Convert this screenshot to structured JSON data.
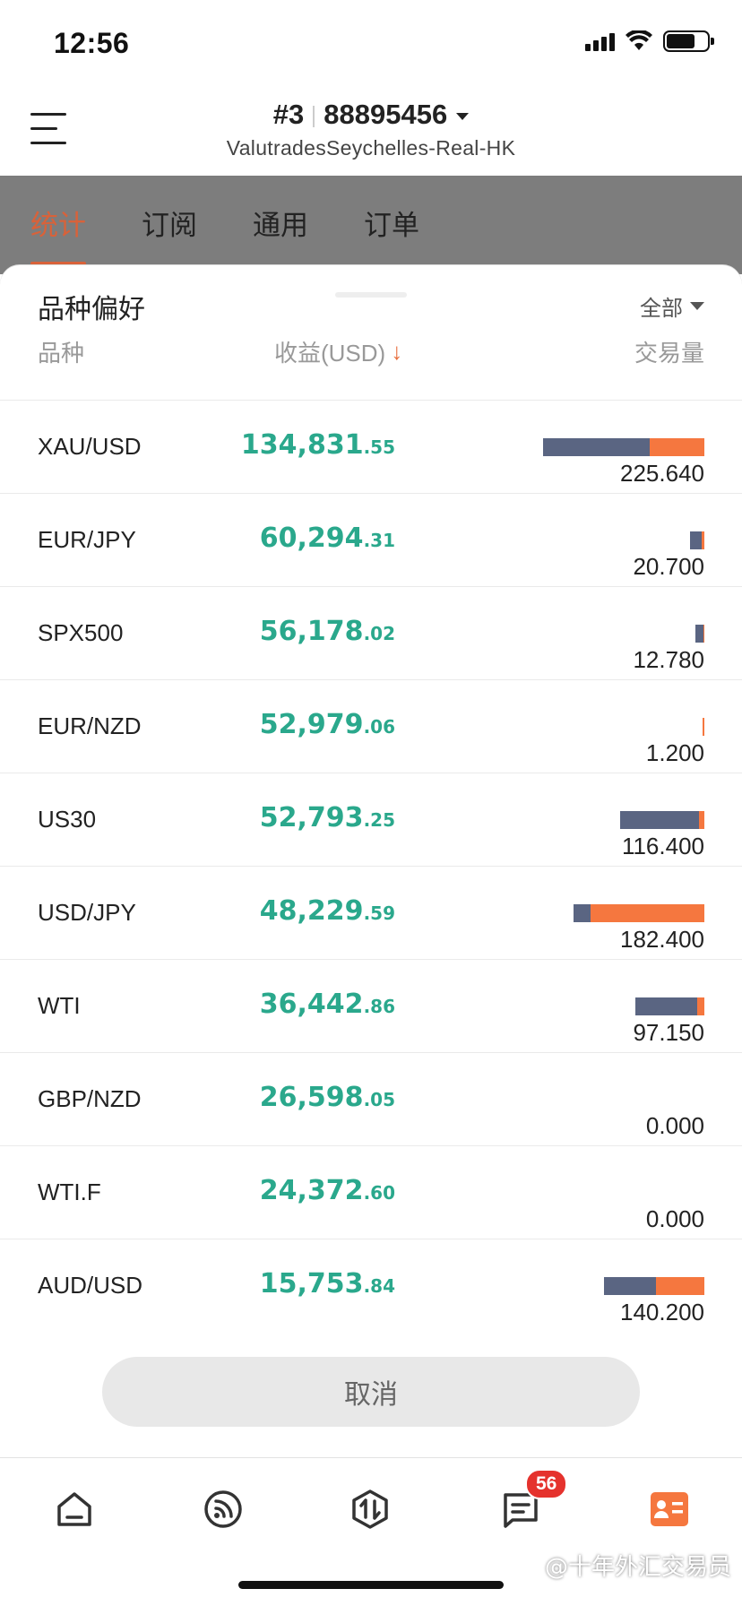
{
  "status": {
    "time": "12:56"
  },
  "header": {
    "account_number_prefix": "#3",
    "account_number": "88895456",
    "server": "ValutradesSeychelles-Real-HK"
  },
  "tabs": [
    {
      "label": "统计",
      "active": true
    },
    {
      "label": "订阅",
      "active": false
    },
    {
      "label": "通用",
      "active": false
    },
    {
      "label": "订单",
      "active": false
    }
  ],
  "sheet": {
    "title": "品种偏好",
    "filter_label": "全部",
    "columns": {
      "symbol": "品种",
      "profit": "收益(USD)",
      "sort_arrow": "↓",
      "volume": "交易量"
    },
    "rows": [
      {
        "symbol": "XAU/USD",
        "profit_int": "134,831",
        "profit_dec": ".55",
        "volume": "225.640",
        "buy_share": 0.66,
        "bar_fraction": 1.0
      },
      {
        "symbol": "EUR/JPY",
        "profit_int": "60,294",
        "profit_dec": ".31",
        "volume": "20.700",
        "buy_share": 0.8,
        "bar_fraction": 0.09
      },
      {
        "symbol": "SPX500",
        "profit_int": "56,178",
        "profit_dec": ".02",
        "volume": "12.780",
        "buy_share": 0.9,
        "bar_fraction": 0.057
      },
      {
        "symbol": "EUR/NZD",
        "profit_int": "52,979",
        "profit_dec": ".06",
        "volume": "1.200",
        "buy_share": 0.0,
        "bar_fraction": 0.012
      },
      {
        "symbol": "US30",
        "profit_int": "52,793",
        "profit_dec": ".25",
        "volume": "116.400",
        "buy_share": 0.94,
        "bar_fraction": 0.52
      },
      {
        "symbol": "USD/JPY",
        "profit_int": "48,229",
        "profit_dec": ".59",
        "volume": "182.400",
        "buy_share": 0.13,
        "bar_fraction": 0.81
      },
      {
        "symbol": "WTI",
        "profit_int": "36,442",
        "profit_dec": ".86",
        "volume": "97.150",
        "buy_share": 0.89,
        "bar_fraction": 0.43
      },
      {
        "symbol": "GBP/NZD",
        "profit_int": "26,598",
        "profit_dec": ".05",
        "volume": "0.000",
        "buy_share": 0.0,
        "bar_fraction": 0.0
      },
      {
        "symbol": "WTI.F",
        "profit_int": "24,372",
        "profit_dec": ".60",
        "volume": "0.000",
        "buy_share": 0.0,
        "bar_fraction": 0.0
      },
      {
        "symbol": "AUD/USD",
        "profit_int": "15,753",
        "profit_dec": ".84",
        "volume": "140.200",
        "buy_share": 0.52,
        "bar_fraction": 0.62
      }
    ],
    "cancel_label": "取消"
  },
  "tabbar": {
    "items": [
      {
        "icon": "home-icon"
      },
      {
        "icon": "signal-feed-icon"
      },
      {
        "icon": "trade-icon"
      },
      {
        "icon": "message-icon",
        "badge": "56"
      },
      {
        "icon": "account-card-icon",
        "active": true
      }
    ]
  },
  "watermark": "@十年外汇交易员",
  "colors": {
    "accent": "#d8623a",
    "profit": "#2aa88c",
    "buy_bar": "#5a6582",
    "sell_bar": "#f5773f",
    "badge": "#e5322d"
  }
}
